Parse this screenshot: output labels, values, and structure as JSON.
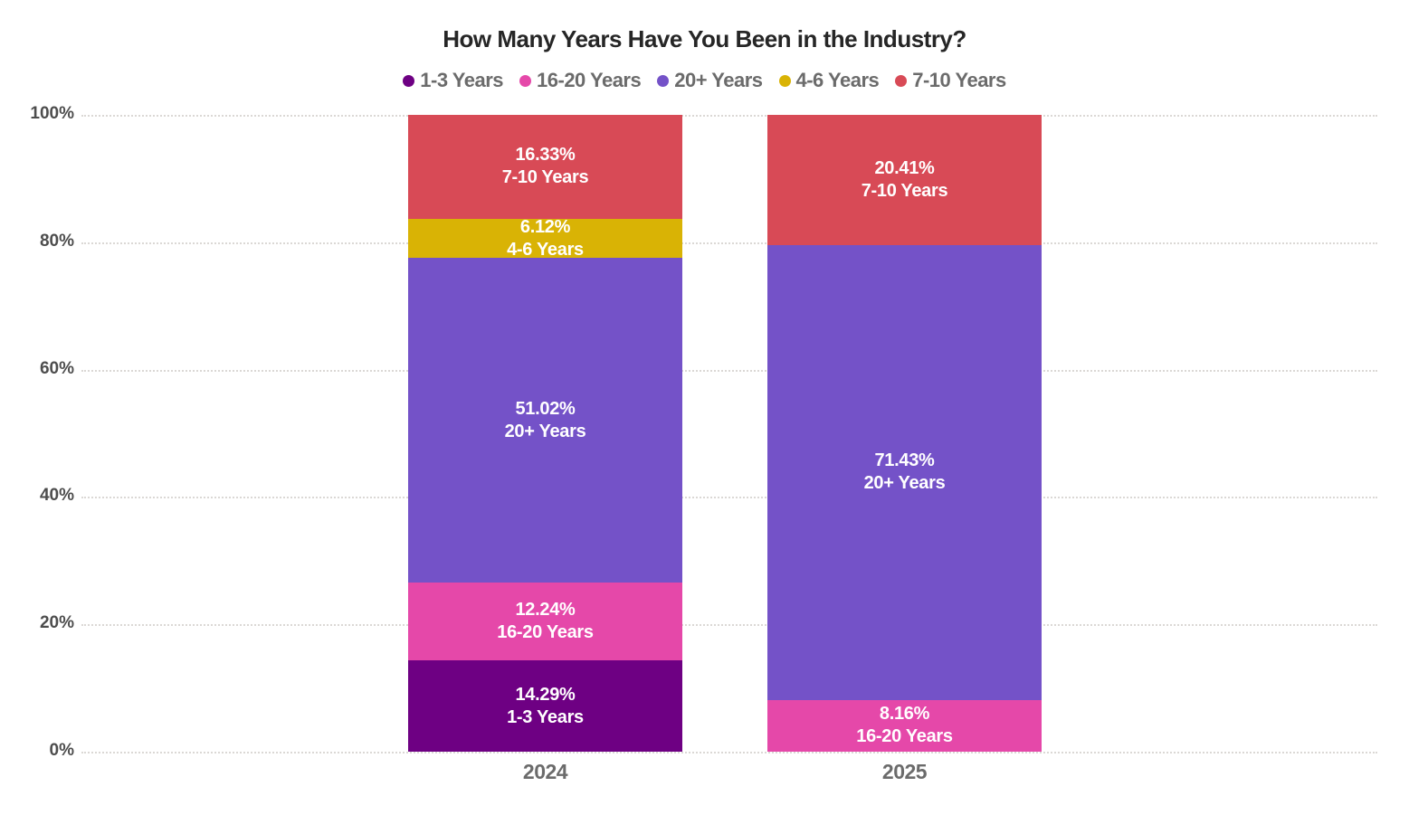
{
  "chart_data": {
    "type": "bar",
    "variant": "stacked-100-percent-column",
    "title": "How Many Years Have You Been in the Industry?",
    "categories": [
      "2024",
      "2025"
    ],
    "series": [
      {
        "name": "1-3 Years",
        "color": "#6E0083",
        "values": [
          14.29,
          0
        ],
        "value_labels": [
          "14.29%",
          null
        ]
      },
      {
        "name": "16-20 Years",
        "color": "#E548A9",
        "values": [
          12.24,
          8.16
        ],
        "value_labels": [
          "12.24%",
          "8.16%"
        ]
      },
      {
        "name": "20+ Years",
        "color": "#7452C8",
        "values": [
          51.02,
          71.43
        ],
        "value_labels": [
          "51.02%",
          "71.43%"
        ]
      },
      {
        "name": "4-6 Years",
        "color": "#D9B305",
        "values": [
          6.12,
          0
        ],
        "value_labels": [
          "6.12%",
          null
        ]
      },
      {
        "name": "7-10 Years",
        "color": "#D84A56",
        "values": [
          16.33,
          20.41
        ],
        "value_labels": [
          "16.33%",
          "20.41%"
        ]
      }
    ],
    "y_ticks": [
      "100%",
      "80%",
      "60%",
      "40%",
      "20%",
      "0%"
    ],
    "ylim": [
      0,
      100
    ],
    "grid": "horizontal-dotted",
    "legend_position": "top",
    "legend": [
      "1-3 Years",
      "16-20 Years",
      "20+ Years",
      "4-6 Years",
      "7-10 Years"
    ],
    "text_colors": {
      "title": "#262626",
      "legend": "#6b6b6b",
      "axis": "#4d4d4d",
      "segment_label": "#ffffff"
    },
    "gridline_color": "#dbd8d5"
  }
}
